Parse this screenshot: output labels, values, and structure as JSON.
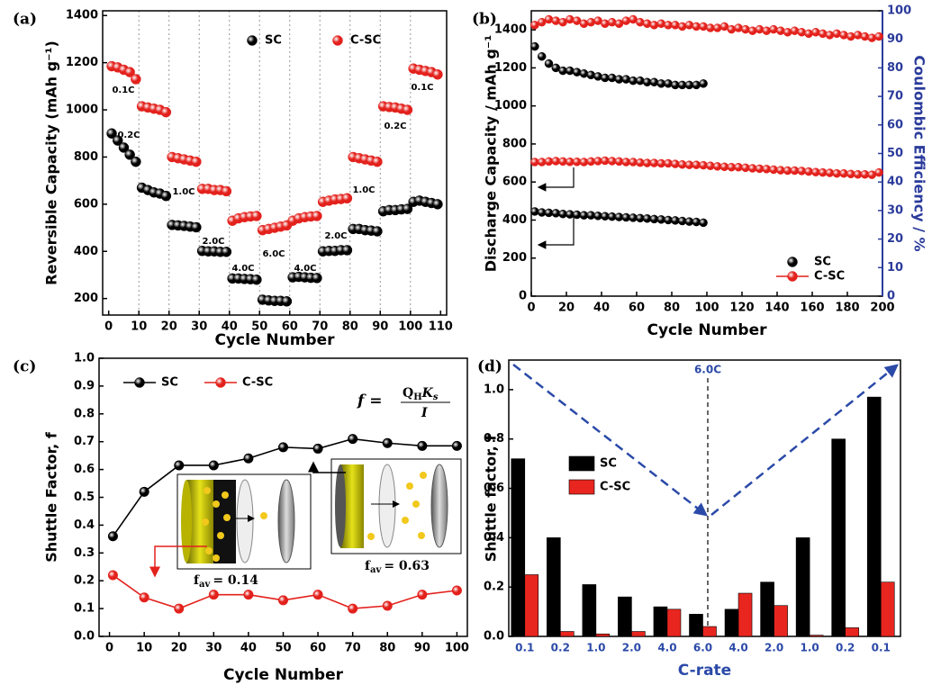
{
  "chart_data": [
    {
      "type": "scatter",
      "label": "(a)",
      "x_label": "Cycle Number",
      "y_label": "Reversible Capacity (mAh g⁻¹)",
      "x": [
        1,
        3,
        5,
        7,
        9,
        11,
        13,
        15,
        17,
        19,
        21,
        23,
        25,
        27,
        29,
        31,
        33,
        35,
        37,
        39,
        41,
        43,
        45,
        47,
        49,
        51,
        53,
        55,
        57,
        59,
        61,
        63,
        65,
        67,
        69,
        71,
        73,
        75,
        77,
        79,
        81,
        83,
        85,
        87,
        89,
        91,
        93,
        95,
        97,
        99,
        101,
        103,
        105,
        107,
        109
      ],
      "xlim": [
        -2,
        112
      ],
      "xticks": [
        0,
        10,
        20,
        30,
        40,
        50,
        60,
        70,
        80,
        90,
        100,
        110
      ],
      "ylim": [
        130,
        1420
      ],
      "yticks": [
        200,
        400,
        600,
        800,
        1000,
        1200,
        1400
      ],
      "grid_x": true,
      "series": [
        {
          "name": "SC",
          "color": "#000000",
          "values": [
            900,
            870,
            840,
            810,
            780,
            670,
            660,
            650,
            645,
            635,
            512,
            510,
            508,
            505,
            502,
            402,
            400,
            400,
            398,
            398,
            285,
            285,
            283,
            282,
            280,
            195,
            192,
            190,
            190,
            188,
            290,
            292,
            290,
            288,
            287,
            400,
            402,
            402,
            405,
            405,
            495,
            495,
            490,
            488,
            485,
            570,
            575,
            575,
            578,
            580,
            610,
            615,
            610,
            605,
            600
          ]
        },
        {
          "name": "C-SC",
          "color": "#e3211c",
          "values": [
            1185,
            1180,
            1170,
            1160,
            1130,
            1015,
            1010,
            1005,
            1000,
            990,
            800,
            795,
            790,
            785,
            780,
            665,
            665,
            660,
            660,
            655,
            530,
            540,
            545,
            548,
            550,
            490,
            495,
            500,
            505,
            510,
            530,
            540,
            545,
            548,
            550,
            610,
            615,
            620,
            622,
            625,
            800,
            795,
            790,
            785,
            780,
            1015,
            1012,
            1010,
            1005,
            1000,
            1175,
            1170,
            1165,
            1160,
            1150
          ]
        }
      ],
      "annotations": [
        "0.1C",
        "0.2C",
        "1.0C",
        "2.0C",
        "4.0C",
        "6.0C",
        "4.0C",
        "2.0C",
        "1.0C",
        "0.2C",
        "0.1C"
      ]
    },
    {
      "type": "scatter",
      "label": "(b)",
      "x_label": "Cycle Number",
      "y_label": "Discharge Capacity / mAh g⁻¹",
      "y2_label": "Coulombic Efficiency / %",
      "y2_color": "#2b3b9b",
      "xlim": [
        0,
        200
      ],
      "xticks": [
        0,
        20,
        40,
        60,
        80,
        100,
        120,
        140,
        160,
        180,
        200
      ],
      "ylim": [
        0,
        1500
      ],
      "yticks": [
        0,
        200,
        400,
        600,
        800,
        1000,
        1200,
        1400
      ],
      "y2lim": [
        0,
        100
      ],
      "y2ticks": [
        0,
        10,
        20,
        30,
        40,
        50,
        60,
        70,
        80,
        90,
        100
      ],
      "series": [
        {
          "name": "SC",
          "color": "#000000",
          "x": [
            2,
            6,
            10,
            14,
            18,
            22,
            26,
            30,
            34,
            38,
            42,
            46,
            50,
            54,
            58,
            62,
            66,
            70,
            74,
            78,
            82,
            86,
            90,
            94,
            98
          ],
          "values": [
            445,
            440,
            438,
            436,
            432,
            430,
            428,
            425,
            425,
            422,
            420,
            418,
            416,
            414,
            412,
            410,
            408,
            405,
            403,
            400,
            398,
            395,
            392,
            390,
            386
          ]
        },
        {
          "name": "C-SC",
          "color": "#e3211c",
          "x": [
            2,
            6,
            10,
            14,
            18,
            22,
            26,
            30,
            34,
            38,
            42,
            46,
            50,
            54,
            58,
            62,
            66,
            70,
            74,
            78,
            82,
            86,
            90,
            94,
            98,
            102,
            106,
            110,
            114,
            118,
            122,
            126,
            130,
            134,
            138,
            142,
            146,
            150,
            154,
            158,
            162,
            166,
            170,
            174,
            178,
            182,
            186,
            190,
            194,
            198
          ],
          "values": [
            705,
            705,
            708,
            710,
            708,
            706,
            706,
            705,
            708,
            710,
            712,
            710,
            708,
            705,
            705,
            702,
            700,
            700,
            698,
            698,
            695,
            692,
            690,
            690,
            688,
            685,
            682,
            680,
            678,
            678,
            675,
            672,
            670,
            668,
            665,
            662,
            660,
            660,
            658,
            655,
            652,
            650,
            648,
            645,
            645,
            642,
            640,
            640,
            638,
            650
          ]
        },
        {
          "color": "#000000",
          "axis": "y2",
          "x": [
            2,
            6,
            10,
            14,
            18,
            22,
            26,
            30,
            34,
            38,
            42,
            46,
            50,
            54,
            58,
            62,
            66,
            70,
            74,
            78,
            82,
            86,
            90,
            94,
            98
          ],
          "values": [
            87.5,
            84,
            81.5,
            80,
            79,
            79,
            78.5,
            78,
            77.5,
            77,
            76.5,
            76.5,
            76,
            76,
            75.5,
            75.5,
            75,
            75,
            74.5,
            74.5,
            74,
            74,
            74,
            74,
            74.5
          ]
        },
        {
          "color": "#e3211c",
          "axis": "y2",
          "x": [
            2,
            6,
            10,
            14,
            18,
            22,
            26,
            30,
            34,
            38,
            42,
            46,
            50,
            54,
            58,
            62,
            66,
            70,
            74,
            78,
            82,
            86,
            90,
            94,
            98,
            102,
            106,
            110,
            114,
            118,
            122,
            126,
            130,
            134,
            138,
            142,
            146,
            150,
            154,
            158,
            162,
            166,
            170,
            174,
            178,
            182,
            186,
            190,
            194,
            198
          ],
          "values": [
            95,
            96,
            97,
            96.5,
            96,
            97,
            96.5,
            95.5,
            96,
            96.5,
            95.5,
            96,
            95.5,
            96.5,
            97,
            96,
            95.5,
            95,
            95.5,
            95,
            95,
            94.5,
            95,
            94.5,
            94.5,
            94,
            94,
            94.5,
            93.5,
            94,
            93.5,
            93,
            93.5,
            93,
            93.5,
            93,
            92.5,
            93,
            92.5,
            92,
            92.5,
            92,
            91.5,
            92,
            91.5,
            91,
            91.5,
            91,
            90.5,
            91
          ]
        }
      ]
    },
    {
      "type": "line",
      "label": "(c)",
      "x_label": "Cycle Number",
      "y_label": "Shuttle Factor, f",
      "x": [
        1,
        10,
        20,
        30,
        40,
        50,
        60,
        70,
        80,
        90,
        100
      ],
      "xlim": [
        -3,
        103
      ],
      "xticks": [
        0,
        10,
        20,
        30,
        40,
        50,
        60,
        70,
        80,
        90,
        100
      ],
      "ylim": [
        0,
        1.0
      ],
      "yticks": [
        {
          "value": 0,
          "label": "0.0"
        },
        0.1,
        0.2,
        0.3,
        0.4,
        0.5,
        0.6,
        0.7,
        0.8,
        0.9,
        {
          "value": 1,
          "label": "1.0"
        }
      ],
      "series": [
        {
          "name": "SC",
          "color": "#000000",
          "values": [
            0.36,
            0.52,
            0.615,
            0.615,
            0.64,
            0.68,
            0.675,
            0.71,
            0.695,
            0.685,
            0.685
          ]
        },
        {
          "name": "C-SC",
          "color": "#e3211c",
          "values": [
            0.22,
            0.14,
            0.1,
            0.15,
            0.15,
            0.13,
            0.15,
            0.1,
            0.11,
            0.15,
            0.165
          ]
        }
      ],
      "formula": {
        "lhs": "f =",
        "numerator": [
          "Q",
          "H",
          "K",
          "s"
        ],
        "denominator": "I"
      },
      "inset_labels": [
        {
          "symbol": "f",
          "subscript": "av",
          "value": "= 0.14"
        },
        {
          "symbol": "f",
          "subscript": "av",
          "value": "= 0.63"
        }
      ]
    },
    {
      "type": "bar",
      "label": "(d)",
      "x_label": "C-rate",
      "y_label": "Shuttle factor, f",
      "x_color": "#2b4aa8",
      "categories": [
        "0.1",
        "0.2",
        "1.0",
        "2.0",
        "4.0",
        "6.0",
        "4.0",
        "2.0",
        "1.0",
        "0.2",
        "0.1"
      ],
      "ylim": [
        0,
        1.12
      ],
      "yticks": [
        {
          "value": 0,
          "label": "0.0"
        },
        0.2,
        0.4,
        0.6,
        0.8,
        {
          "value": 1,
          "label": "1.0"
        }
      ],
      "series": [
        {
          "name": "SC",
          "color": "#000000",
          "values": [
            0.72,
            0.4,
            0.21,
            0.16,
            0.12,
            0.09,
            0.11,
            0.22,
            0.4,
            0.8,
            0.97
          ]
        },
        {
          "name": "C-SC",
          "color": "#e8261f",
          "values": [
            0.25,
            0.02,
            0.01,
            0.02,
            0.11,
            0.04,
            0.175,
            0.125,
            0.005,
            0.035,
            0.22
          ]
        }
      ],
      "annotation": "6.0C"
    }
  ]
}
